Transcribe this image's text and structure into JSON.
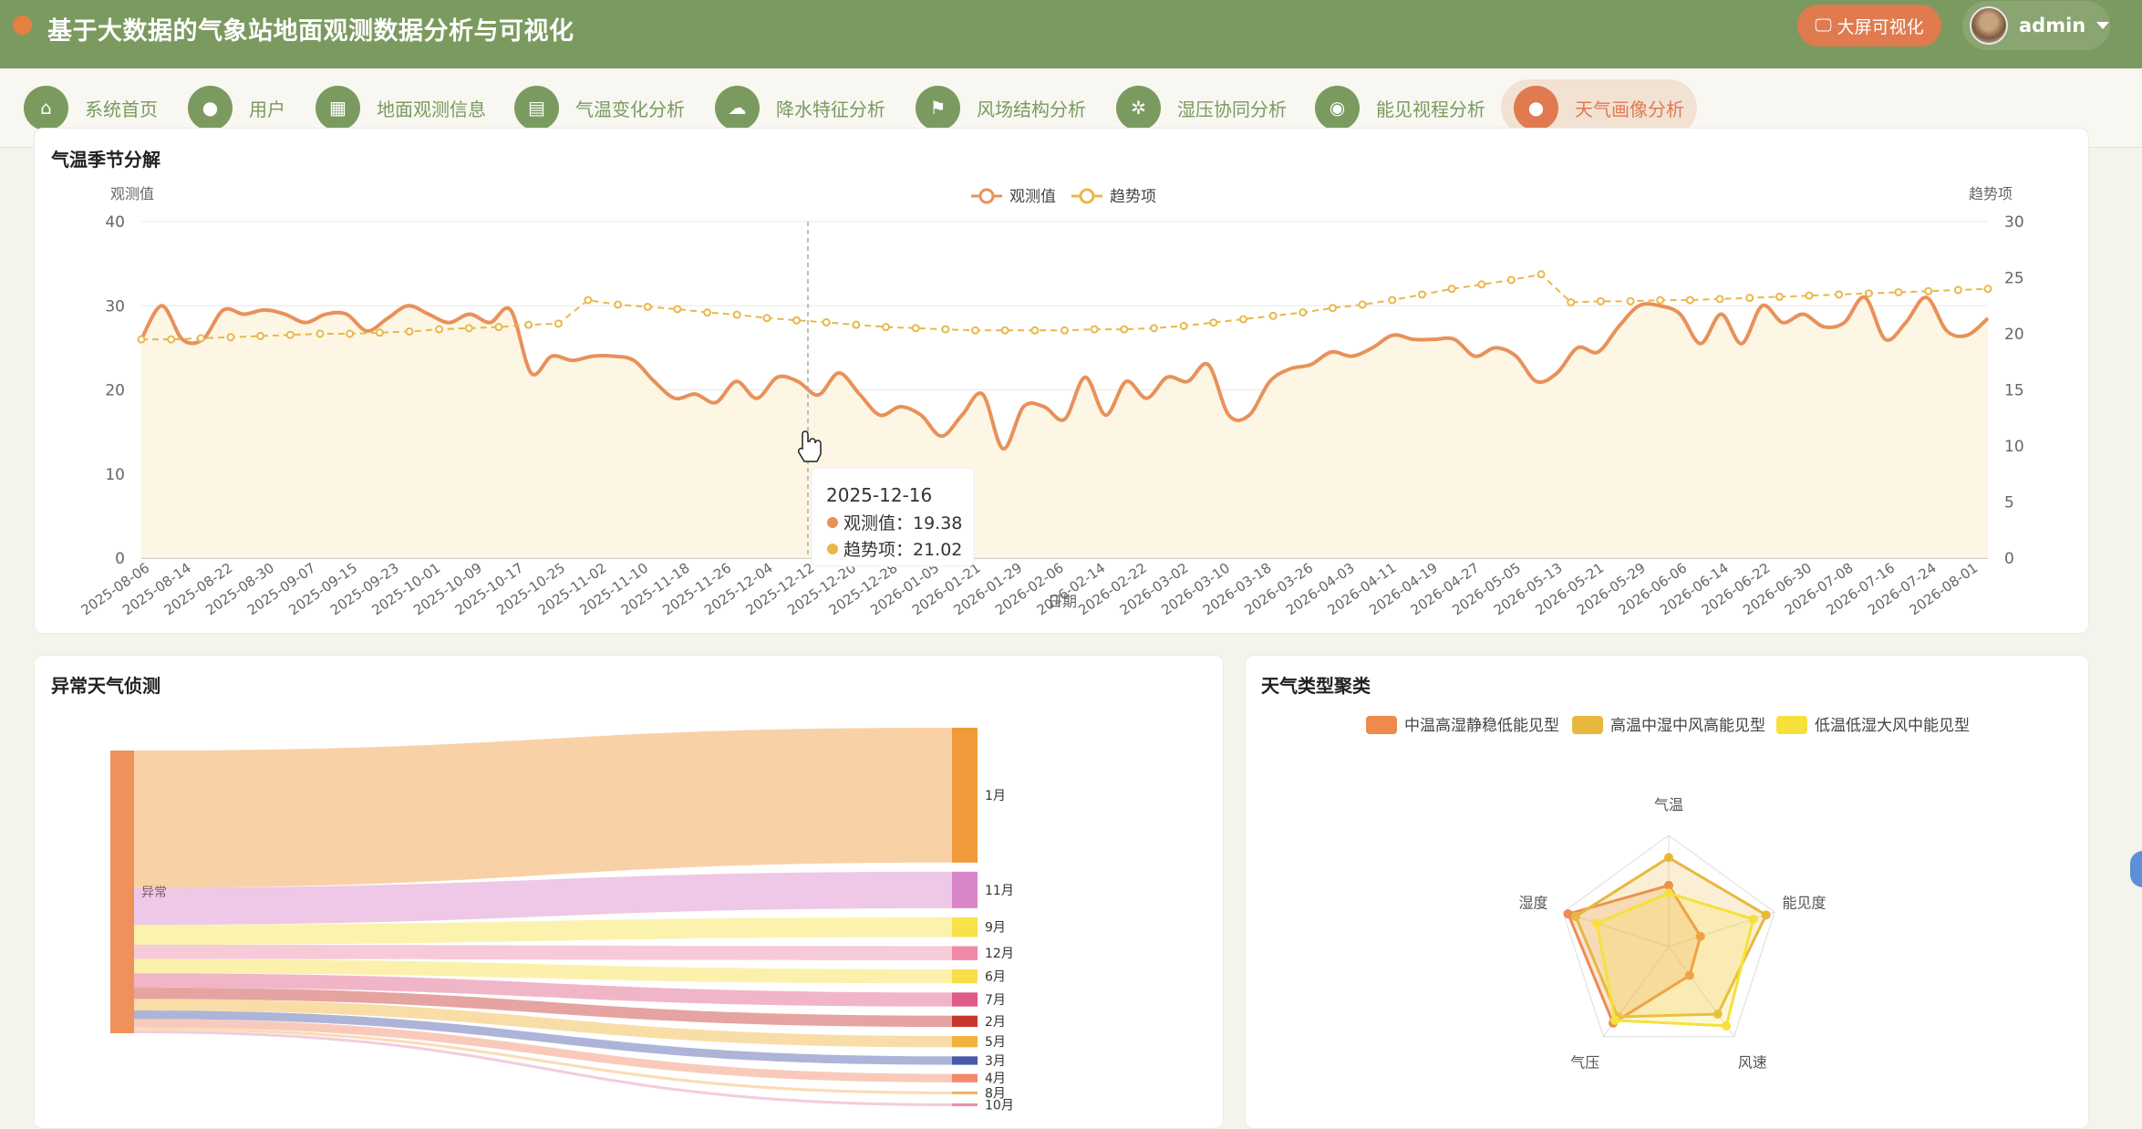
{
  "app": {
    "title": "基于大数据的气象站地面观测数据分析与可视化",
    "bigscreen_label": "大屏可视化",
    "user": "admin"
  },
  "nav": [
    {
      "label": "系统首页",
      "icon": "home-icon",
      "glyph": "⌂"
    },
    {
      "label": "用户",
      "icon": "user-icon",
      "glyph": "●"
    },
    {
      "label": "地面观测信息",
      "icon": "grid-icon",
      "glyph": "▦"
    },
    {
      "label": "气温变化分析",
      "icon": "presentation-chart-icon",
      "glyph": "▤"
    },
    {
      "label": "降水特征分析",
      "icon": "cloud-rain-icon",
      "glyph": "☁"
    },
    {
      "label": "风场结构分析",
      "icon": "flag-icon",
      "glyph": "⚑"
    },
    {
      "label": "湿压协同分析",
      "icon": "aperture-icon",
      "glyph": "✲"
    },
    {
      "label": "能见视程分析",
      "icon": "eye-icon",
      "glyph": "◉"
    },
    {
      "label": "天气画像分析",
      "icon": "map-pin-icon",
      "glyph": "●",
      "active": true
    }
  ],
  "panels": {
    "seasonal": {
      "title": "气温季节分解"
    },
    "anomaly": {
      "title": "异常天气侦测"
    },
    "cluster": {
      "title": "天气类型聚类"
    }
  },
  "colors": {
    "accent": "#e07a4f",
    "header": "#7b9a5f",
    "observed": "#e8915a",
    "trend": "#e8b84a"
  },
  "chart_data": [
    {
      "type": "line",
      "title": "气温季节分解",
      "xlabel": "日期",
      "ylabel_left": "观测值",
      "ylabel_right": "趋势项",
      "ylim_left": [
        0,
        40
      ],
      "ylim_right": [
        0,
        30
      ],
      "yticks_left": [
        0,
        10,
        20,
        30,
        40
      ],
      "yticks_right": [
        0,
        5,
        10,
        15,
        20,
        25,
        30
      ],
      "legend": [
        "观测值",
        "趋势项"
      ],
      "legend_position": "top-center",
      "x_tick_labels": [
        "2025-08-06",
        "2025-08-14",
        "2025-08-22",
        "2025-08-30",
        "2025-09-07",
        "2025-09-15",
        "2025-09-23",
        "2025-10-01",
        "2025-10-09",
        "2025-10-17",
        "2025-10-25",
        "2025-11-02",
        "2025-11-10",
        "2025-11-18",
        "2025-11-26",
        "2025-12-04",
        "2025-12-12",
        "2025-12-20",
        "2025-12-28",
        "2026-01-05",
        "2026-01-21",
        "2026-01-29",
        "2026-02-06",
        "2026-02-14",
        "2026-02-22",
        "2026-03-02",
        "2026-03-10",
        "2026-03-18",
        "2026-03-26",
        "2026-04-03",
        "2026-04-11",
        "2026-04-19",
        "2026-04-27",
        "2026-05-05",
        "2026-05-13",
        "2026-05-21",
        "2026-05-29",
        "2026-06-06",
        "2026-06-14",
        "2026-06-22",
        "2026-06-30",
        "2026-07-08",
        "2026-07-16",
        "2026-07-24",
        "2026-08-01"
      ],
      "tooltip": {
        "date": "2025-12-16",
        "observed_label": "观测值：",
        "observed": "19.38",
        "trend_label": "趋势项：",
        "trend": "21.02"
      },
      "series": [
        {
          "name": "观测值",
          "axis": "left",
          "values": [
            26,
            30,
            26,
            26,
            29.5,
            29,
            29.5,
            29,
            28,
            29,
            29,
            27,
            28.5,
            30,
            29,
            28,
            29,
            28,
            29.5,
            22,
            24,
            23.5,
            24,
            24,
            23.5,
            21,
            19,
            19.5,
            18.5,
            21,
            19,
            21.5,
            21,
            19.4,
            22,
            19.5,
            17,
            18,
            17,
            14.5,
            17,
            19.5,
            13,
            18,
            18,
            16.5,
            21.5,
            17,
            21,
            19,
            21.5,
            21,
            23,
            17,
            17,
            21,
            22.5,
            23,
            24.5,
            24,
            25,
            26.5,
            26,
            26,
            26,
            24,
            25,
            24,
            21,
            22,
            25,
            24.5,
            27.5,
            30,
            30,
            29,
            25.5,
            29,
            25.5,
            30,
            28,
            29,
            27.5,
            28,
            31,
            26,
            28,
            31,
            27,
            26.5,
            28.5
          ]
        },
        {
          "name": "趋势项",
          "axis": "right",
          "values": [
            19.5,
            19.5,
            19.6,
            19.7,
            19.8,
            19.9,
            20,
            20,
            20.1,
            20.2,
            20.4,
            20.5,
            20.6,
            20.8,
            20.9,
            23,
            22.6,
            22.4,
            22.2,
            21.9,
            21.7,
            21.4,
            21.2,
            21.02,
            20.8,
            20.6,
            20.5,
            20.4,
            20.3,
            20.3,
            20.3,
            20.3,
            20.4,
            20.4,
            20.5,
            20.7,
            21,
            21.3,
            21.6,
            21.9,
            22.3,
            22.6,
            23,
            23.5,
            24,
            24.4,
            24.8,
            25.3,
            22.8,
            22.9,
            22.9,
            23,
            23,
            23.1,
            23.2,
            23.3,
            23.4,
            23.5,
            23.6,
            23.7,
            23.8,
            23.9,
            24
          ]
        }
      ]
    },
    {
      "type": "sankey",
      "title": "异常天气侦测",
      "source": "异常",
      "targets": [
        {
          "name": "1月",
          "value": 48,
          "color": "#f19a3c"
        },
        {
          "name": "11月",
          "value": 13,
          "color": "#d986c8"
        },
        {
          "name": "9月",
          "value": 7,
          "color": "#f7e24a"
        },
        {
          "name": "12月",
          "value": 5,
          "color": "#ee8aa6"
        },
        {
          "name": "6月",
          "value": 5,
          "color": "#f7df4a"
        },
        {
          "name": "7月",
          "value": 5,
          "color": "#e05b86"
        },
        {
          "name": "2月",
          "value": 4,
          "color": "#c6362e"
        },
        {
          "name": "5月",
          "value": 4,
          "color": "#f2b33c"
        },
        {
          "name": "3月",
          "value": 3,
          "color": "#4a58a8"
        },
        {
          "name": "4月",
          "value": 3,
          "color": "#f28a6a"
        },
        {
          "name": "8月",
          "value": 1,
          "color": "#f5b25a"
        },
        {
          "name": "10月",
          "value": 1,
          "color": "#e78db6"
        }
      ]
    },
    {
      "type": "radar",
      "title": "天气类型聚类",
      "indicators": [
        "气温",
        "能见度",
        "风速",
        "气压",
        "湿度"
      ],
      "legend_position": "top-center",
      "series": [
        {
          "name": "中温高湿静稳低能见型",
          "color": "#ee8a4e",
          "values": [
            0.55,
            0.3,
            0.32,
            0.85,
            0.95
          ]
        },
        {
          "name": "高温中湿中风高能见型",
          "color": "#e8b73e",
          "values": [
            0.8,
            0.92,
            0.75,
            0.78,
            0.88
          ]
        },
        {
          "name": "低温低湿大风中能见型",
          "color": "#f7e03a",
          "values": [
            0.48,
            0.8,
            0.88,
            0.82,
            0.68
          ]
        }
      ]
    }
  ]
}
